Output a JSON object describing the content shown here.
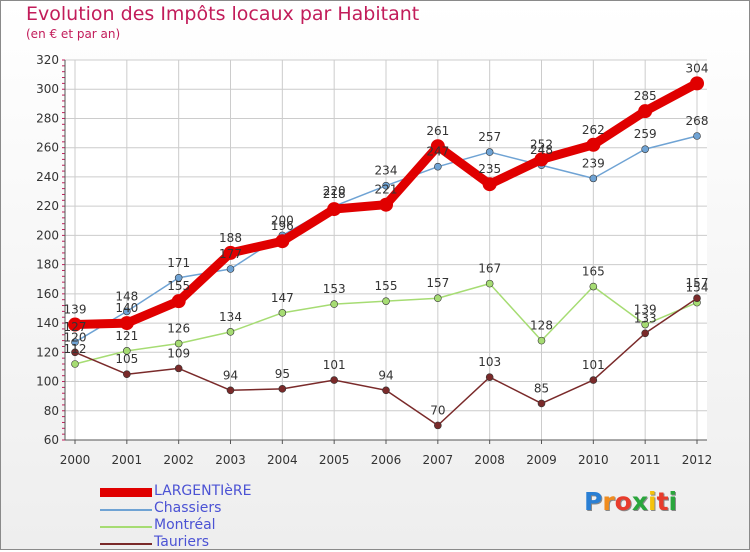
{
  "header": {
    "title": "Evolution des Impôts locaux par Habitant",
    "subtitle": "(en € et par an)"
  },
  "colors": {
    "accent": "#c21c5a",
    "legend_text": "#4b52d4",
    "grid": "#cccccc"
  },
  "logo": {
    "letters": [
      "P",
      "r",
      "o",
      "x",
      "i",
      "t",
      "i"
    ],
    "colors": [
      "#2a7fd4",
      "#f08c1e",
      "#e83c2c",
      "#2aa63c",
      "#f5c20a",
      "#e83c2c",
      "#2aa63c"
    ]
  },
  "chart_data": {
    "type": "line",
    "title": "Evolution des Impôts locaux par Habitant",
    "subtitle": "(en € et par an)",
    "xlabel": "",
    "ylabel": "",
    "x": [
      "2000",
      "2001",
      "2002",
      "2003",
      "2004",
      "2005",
      "2006",
      "2007",
      "2008",
      "2009",
      "2010",
      "2011",
      "2012"
    ],
    "ylim": [
      60,
      320
    ],
    "yticks": [
      60,
      80,
      100,
      120,
      140,
      160,
      180,
      200,
      220,
      240,
      260,
      280,
      300,
      320
    ],
    "grid": true,
    "legend_position": "bottom-left",
    "series": [
      {
        "name": "LARGENTIèRE",
        "color": "#e00000",
        "values": [
          139,
          140,
          155,
          188,
          196,
          218,
          221,
          261,
          235,
          252,
          262,
          285,
          304
        ],
        "labels": [
          "139",
          "140",
          "155",
          "188",
          "196",
          "218",
          "221",
          "261",
          "235",
          "252",
          "262",
          "285",
          "304"
        ]
      },
      {
        "name": "Chassiers",
        "color": "#6fa3d4",
        "values": [
          127,
          148,
          171,
          177,
          200,
          220,
          234,
          247,
          257,
          248,
          239,
          259,
          268
        ],
        "labels": [
          "127",
          "148",
          "171",
          "177",
          "200",
          "220",
          "234",
          "247",
          "257",
          "248",
          "239",
          "259",
          "268"
        ]
      },
      {
        "name": "Montréal",
        "color": "#a6dc73",
        "values": [
          112,
          121,
          126,
          134,
          147,
          153,
          155,
          157,
          167,
          128,
          165,
          139,
          154
        ],
        "labels": [
          "112",
          "121",
          "126",
          "134",
          "147",
          "153",
          "155",
          "157",
          "167",
          "128",
          "165",
          "139",
          "154"
        ]
      },
      {
        "name": "Tauriers",
        "color": "#7a2a2a",
        "values": [
          120,
          105,
          109,
          94,
          95,
          101,
          94,
          70,
          103,
          85,
          101,
          133,
          157
        ],
        "labels": [
          "120",
          "105",
          "109",
          "94",
          "95",
          "101",
          "94",
          "70",
          "103",
          "85",
          "101",
          "133",
          "157"
        ]
      }
    ]
  }
}
